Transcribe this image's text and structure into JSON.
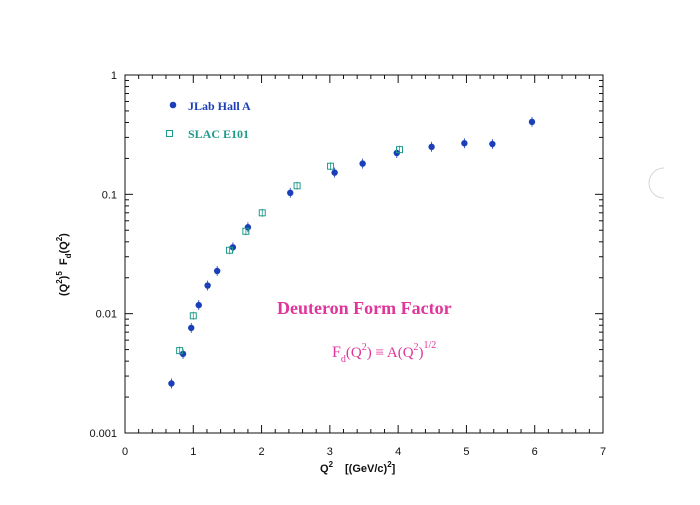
{
  "chart_data": {
    "type": "scatter",
    "xlabel_main": "Q",
    "xlabel_sup": "2",
    "xlabel_units_open": "[(GeV/c)",
    "xlabel_units_sup": "2",
    "xlabel_units_close": "]",
    "ylabel_a": "(Q",
    "ylabel_a_sup": "2",
    "ylabel_b": ")",
    "ylabel_b_sup": "5",
    "ylabel_c": " F",
    "ylabel_c_sub": "d",
    "ylabel_d": "(Q",
    "ylabel_d_sup": "2",
    "ylabel_e": ")",
    "xlim": [
      0,
      7
    ],
    "ylim": [
      0.001,
      1
    ],
    "yscale": "log",
    "grid": false,
    "legend_position": "top-left",
    "x_tick_labels": [
      "0",
      "1",
      "2",
      "3",
      "4",
      "5",
      "6",
      "7"
    ],
    "y_tick_labels": [
      "0.001",
      "0.01",
      "0.1",
      "1"
    ],
    "series": [
      {
        "name": "JLab Hall A",
        "marker": "filled-circle",
        "color": "#1a3fb8",
        "points": [
          {
            "x": 0.68,
            "y": 0.0026
          },
          {
            "x": 0.85,
            "y": 0.0046
          },
          {
            "x": 0.97,
            "y": 0.0076
          },
          {
            "x": 1.08,
            "y": 0.0118
          },
          {
            "x": 1.21,
            "y": 0.0172
          },
          {
            "x": 1.35,
            "y": 0.0228
          },
          {
            "x": 1.58,
            "y": 0.036
          },
          {
            "x": 1.8,
            "y": 0.053
          },
          {
            "x": 2.42,
            "y": 0.103
          },
          {
            "x": 3.07,
            "y": 0.152
          },
          {
            "x": 3.48,
            "y": 0.181
          },
          {
            "x": 3.98,
            "y": 0.222
          },
          {
            "x": 4.49,
            "y": 0.25
          },
          {
            "x": 4.97,
            "y": 0.268
          },
          {
            "x": 5.38,
            "y": 0.264
          },
          {
            "x": 5.96,
            "y": 0.405
          }
        ]
      },
      {
        "name": "SLAC E101",
        "marker": "open-square",
        "color": "#1f9b8a",
        "points": [
          {
            "x": 0.8,
            "y": 0.0049
          },
          {
            "x": 1.0,
            "y": 0.0096
          },
          {
            "x": 1.53,
            "y": 0.034
          },
          {
            "x": 1.77,
            "y": 0.049
          },
          {
            "x": 2.01,
            "y": 0.07
          },
          {
            "x": 2.52,
            "y": 0.118
          },
          {
            "x": 3.01,
            "y": 0.172
          },
          {
            "x": 4.02,
            "y": 0.237
          }
        ]
      }
    ],
    "annotation_title": "Deuteron Form Factor",
    "annotation_color": "#e0359a",
    "formula": {
      "f": "F",
      "f_sub": "d",
      "open": "(Q",
      "sup_left": "2",
      "close_eq": ")  ≡  A(Q",
      "sup_right": "2",
      "close": ")",
      "exponent": "1/2"
    }
  }
}
